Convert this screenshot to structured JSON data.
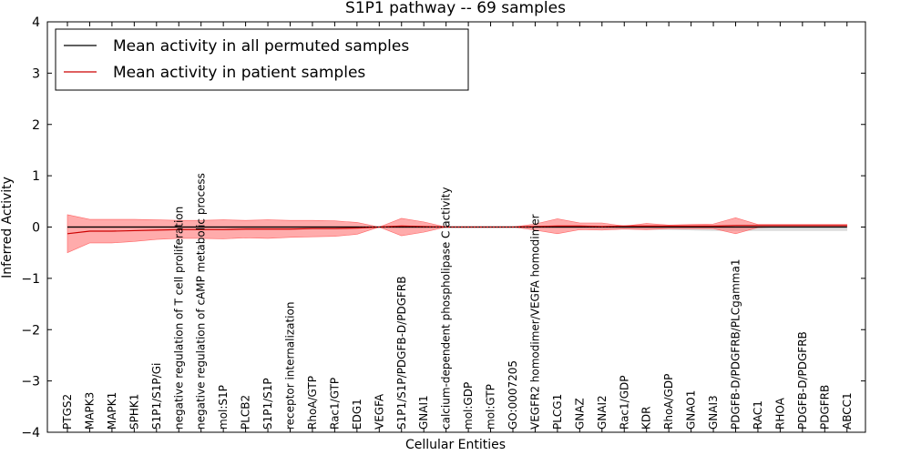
{
  "chart_data": {
    "type": "line",
    "title": "S1P1 pathway -- 69 samples",
    "xlabel": "Cellular Entities",
    "ylabel": "Inferred Activity",
    "ylim": [
      -4,
      4
    ],
    "yticks": [
      -4,
      -3,
      -2,
      -1,
      0,
      1,
      2,
      3,
      4
    ],
    "ytick_labels": [
      "−4",
      "−3",
      "−2",
      "−1",
      "0",
      "1",
      "2",
      "3",
      "4"
    ],
    "categories": [
      "PTGS2",
      "MAPK3",
      "MAPK1",
      "SPHK1",
      "S1P1/S1P/Gi",
      "negative regulation of T cell proliferation",
      "negative regulation of cAMP metabolic process",
      "mol:S1P",
      "PLCB2",
      "S1P1/S1P",
      "receptor internalization",
      "RhoA/GTP",
      "Rac1/GTP",
      "EDG1",
      "VEGFA",
      "S1P1/S1P/PDGFB-D/PDGFRB",
      "GNAI1",
      "calcium-dependent phospholipase C activity",
      "mol:GDP",
      "mol:GTP",
      "GO:0007205",
      "VEGFR2 homodimer/VEGFA homodimer",
      "PLCG1",
      "GNAZ",
      "GNAI2",
      "Rac1/GDP",
      "KDR",
      "RhoA/GDP",
      "GNAO1",
      "GNAI3",
      "PDGFB-D/PDGFRB/PLCgamma1",
      "RAC1",
      "RHOA",
      "PDGFB-D/PDGFRB",
      "PDGFRB",
      "ABCC1"
    ],
    "legend": {
      "location": "top-left",
      "entries": [
        "Mean activity in all permuted samples",
        "Mean activity in patient samples"
      ]
    },
    "series": [
      {
        "name": "Mean activity in all permuted samples",
        "color": "#000000",
        "band_color": "#d9d9d9",
        "values": [
          0.0,
          0.0,
          0.0,
          0.0,
          0.0,
          0.0,
          0.0,
          0.0,
          0.0,
          0.0,
          0.0,
          0.0,
          0.0,
          0.0,
          0.0,
          0.0,
          0.0,
          0.0,
          0.0,
          0.0,
          0.0,
          0.0,
          0.0,
          0.0,
          0.0,
          0.0,
          0.0,
          0.0,
          0.0,
          0.0,
          0.0,
          0.0,
          0.0,
          0.0,
          0.0,
          0.0
        ],
        "band_upper": [
          0.02,
          0.02,
          0.02,
          0.02,
          0.02,
          0.02,
          0.02,
          0.02,
          0.02,
          0.02,
          0.02,
          0.02,
          0.02,
          0.02,
          0.01,
          0.02,
          0.02,
          0.01,
          0.01,
          0.01,
          0.01,
          0.02,
          0.02,
          0.02,
          0.02,
          0.02,
          0.02,
          0.02,
          0.02,
          0.02,
          0.02,
          0.02,
          0.02,
          0.02,
          0.02,
          0.02
        ],
        "band_lower": [
          -0.02,
          -0.02,
          -0.02,
          -0.02,
          -0.02,
          -0.02,
          -0.02,
          -0.02,
          -0.02,
          -0.02,
          -0.02,
          -0.02,
          -0.02,
          -0.02,
          -0.01,
          -0.02,
          -0.02,
          -0.01,
          -0.01,
          -0.01,
          -0.01,
          -0.02,
          -0.02,
          -0.02,
          -0.03,
          -0.04,
          -0.05,
          -0.05,
          -0.06,
          -0.07,
          -0.07,
          -0.07,
          -0.07,
          -0.07,
          -0.07,
          -0.07
        ]
      },
      {
        "name": "Mean activity in patient samples",
        "color": "#cc0000",
        "band_color": "#ff6666",
        "values": [
          -0.13,
          -0.08,
          -0.08,
          -0.07,
          -0.06,
          -0.05,
          -0.05,
          -0.05,
          -0.04,
          -0.04,
          -0.04,
          -0.03,
          -0.03,
          -0.02,
          0.0,
          0.02,
          0.01,
          0.0,
          0.0,
          0.0,
          0.0,
          0.01,
          0.02,
          0.02,
          0.01,
          0.02,
          0.02,
          0.02,
          0.02,
          0.02,
          0.03,
          0.03,
          0.03,
          0.03,
          0.03,
          0.03
        ],
        "band_upper": [
          0.24,
          0.15,
          0.15,
          0.15,
          0.14,
          0.13,
          0.13,
          0.14,
          0.13,
          0.14,
          0.13,
          0.13,
          0.12,
          0.09,
          0.0,
          0.17,
          0.1,
          0.0,
          0.0,
          0.0,
          0.0,
          0.06,
          0.16,
          0.08,
          0.08,
          0.02,
          0.07,
          0.04,
          0.05,
          0.06,
          0.18,
          0.05,
          0.05,
          0.05,
          0.05,
          0.05
        ],
        "band_lower": [
          -0.5,
          -0.31,
          -0.31,
          -0.28,
          -0.24,
          -0.22,
          -0.22,
          -0.23,
          -0.21,
          -0.22,
          -0.2,
          -0.19,
          -0.18,
          -0.14,
          0.0,
          -0.17,
          -0.1,
          0.0,
          0.0,
          0.0,
          0.0,
          -0.06,
          -0.13,
          -0.05,
          -0.06,
          -0.04,
          -0.05,
          -0.03,
          -0.03,
          -0.03,
          -0.13,
          -0.01,
          0.0,
          0.0,
          0.0,
          0.0
        ]
      }
    ]
  }
}
